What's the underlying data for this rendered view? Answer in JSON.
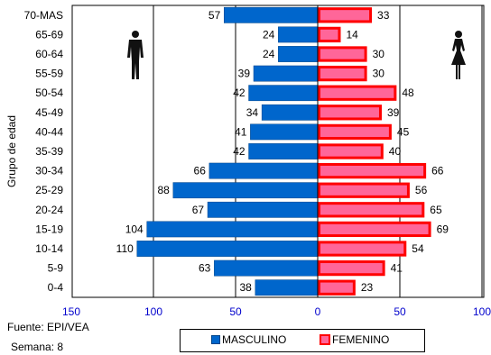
{
  "chart_data": {
    "type": "bar",
    "orientation": "horizontal-population-pyramid",
    "categories": [
      "70-MAS",
      "65-69",
      "60-64",
      "55-59",
      "50-54",
      "45-49",
      "40-44",
      "35-39",
      "30-34",
      "25-29",
      "20-24",
      "15-19",
      "10-14",
      "5-9",
      "0-4"
    ],
    "series": [
      {
        "name": "MASCULINO",
        "color": "#0066cc",
        "values": [
          57,
          24,
          24,
          39,
          42,
          34,
          41,
          42,
          66,
          88,
          67,
          104,
          110,
          63,
          38
        ]
      },
      {
        "name": "FEMENINO",
        "color": "#ff6699",
        "border": "#ff0000",
        "values": [
          33,
          14,
          30,
          30,
          48,
          39,
          45,
          40,
          66,
          56,
          65,
          69,
          54,
          41,
          23
        ]
      }
    ],
    "ylabel": "Grupo de edad",
    "xlim": [
      -100,
      100
    ],
    "xticks": [
      -150,
      -100,
      -50,
      0,
      50,
      100
    ],
    "xtick_labels": [
      "150",
      "100",
      "50",
      "0",
      "50",
      "100"
    ],
    "grid": "vertical",
    "legend": "bottom-center"
  },
  "footer": {
    "source": "Fuente: EPI/VEA",
    "week": "Semana: 8"
  },
  "icons": {
    "male": "man-silhouette-icon",
    "female": "woman-silhouette-icon"
  }
}
